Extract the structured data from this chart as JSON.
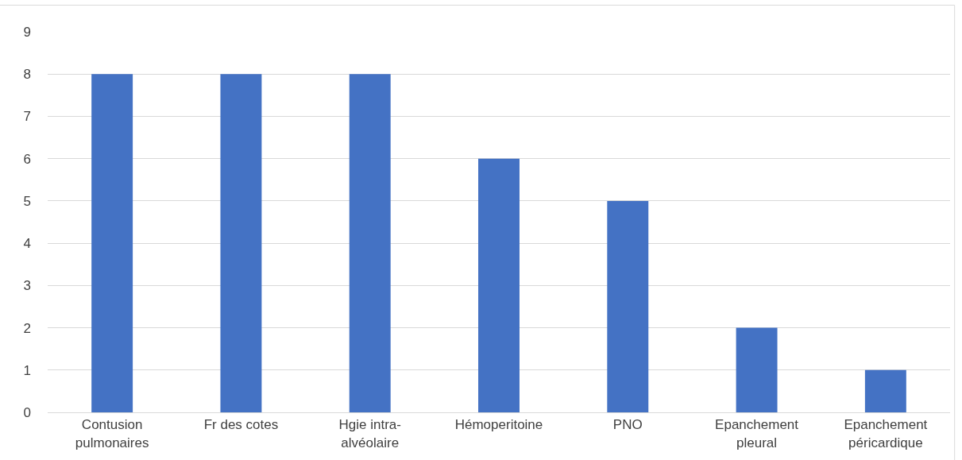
{
  "chart_data": {
    "type": "bar",
    "categories": [
      "Contusion\npulmonaires",
      "Fr des cotes",
      "Hgie intra-\nalvéolaire",
      "Hémoperitoine",
      "PNO",
      "Epanchement\npleural",
      "Epanchement\npéricardique"
    ],
    "values": [
      8,
      8,
      8,
      6,
      5,
      2,
      1
    ],
    "color": "#4472c4",
    "ylim": [
      0,
      9
    ],
    "yticks": [
      0,
      1,
      2,
      3,
      4,
      5,
      6,
      7,
      8,
      9
    ],
    "grid": "y"
  }
}
